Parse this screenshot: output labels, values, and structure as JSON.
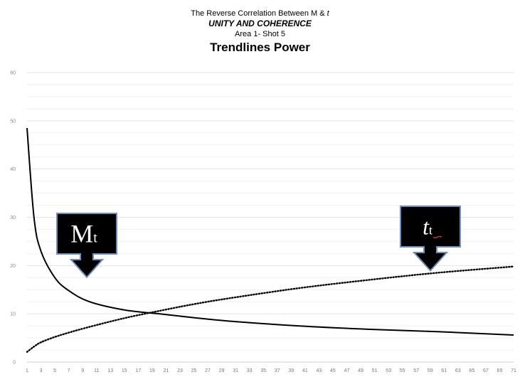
{
  "titles": {
    "line1_prefix": "The Reverse Correlation Between M & ",
    "line1_var": "t",
    "line2": "UNITY AND COHERENCE",
    "line3": "Area 1- Shot 5",
    "line4": "Trendlines Power"
  },
  "chart_data": {
    "type": "line",
    "title": "Trendlines Power",
    "ylim": [
      0,
      60
    ],
    "yticks": [
      0,
      10,
      20,
      30,
      40,
      50,
      60
    ],
    "xlim": [
      1,
      71
    ],
    "xticks": [
      1,
      3,
      5,
      7,
      9,
      11,
      13,
      15,
      17,
      19,
      21,
      23,
      25,
      27,
      29,
      31,
      33,
      35,
      37,
      39,
      41,
      43,
      45,
      47,
      49,
      51,
      53,
      55,
      57,
      59,
      61,
      63,
      65,
      67,
      69,
      71
    ],
    "grid": true,
    "series": [
      {
        "key": "M",
        "style": "solid",
        "color": "#000000",
        "x": [
          1,
          2,
          3,
          5,
          7,
          10,
          15,
          20,
          25,
          30,
          40,
          50,
          60,
          71
        ],
        "y": [
          48.5,
          30.0,
          23.0,
          17.5,
          14.8,
          12.5,
          10.8,
          10.0,
          9.2,
          8.5,
          7.5,
          6.8,
          6.3,
          5.6
        ]
      },
      {
        "key": "t",
        "style": "dotted",
        "color": "#000000",
        "x": [
          1,
          2,
          3,
          5,
          7,
          10,
          15,
          20,
          25,
          30,
          40,
          50,
          60,
          71
        ],
        "y": [
          2.1,
          3.2,
          4.1,
          5.2,
          6.1,
          7.3,
          9.1,
          10.6,
          12.0,
          13.2,
          15.3,
          17.0,
          18.5,
          19.8
        ]
      }
    ]
  },
  "callouts": [
    {
      "name": "M",
      "main": "M",
      "sub": "t",
      "fill": "#000000",
      "border": "#6a8fbf"
    },
    {
      "name": "t",
      "main": "t",
      "sub": "t",
      "fill": "#000000",
      "border": "#6a8fbf",
      "underline": "#c0392b"
    }
  ]
}
